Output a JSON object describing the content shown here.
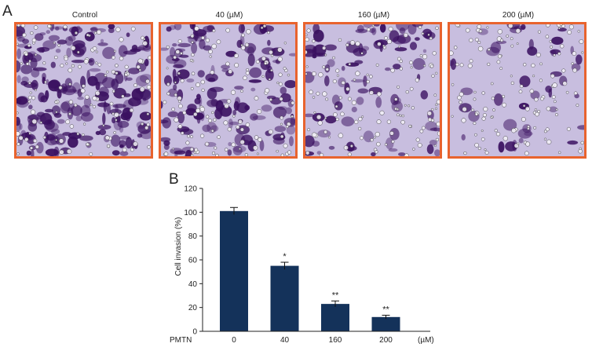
{
  "panel_a": {
    "letter": "A",
    "images": [
      {
        "label": "Control",
        "stain_density": 0.92
      },
      {
        "label": "40 (µM)",
        "stain_density": 0.62
      },
      {
        "label": "160 (µM)",
        "stain_density": 0.34
      },
      {
        "label": "200 (µM)",
        "stain_density": 0.12
      }
    ],
    "frame_color": "#e8632e",
    "stain_color": "#3a1060",
    "background_color": "#c8bedf"
  },
  "panel_b": {
    "letter": "B",
    "chart_data": {
      "type": "bar",
      "categories": [
        "0",
        "40",
        "160",
        "200"
      ],
      "values": [
        101,
        55,
        23,
        12
      ],
      "errors": [
        3,
        3,
        2.5,
        1.5
      ],
      "significance": [
        "",
        "*",
        "**",
        "**"
      ],
      "ylabel": "Cell invasion (%)",
      "xlabel_left": "PMTN",
      "xlabel_right": "(µM)",
      "ylim": [
        0,
        120
      ],
      "yticks": [
        "0",
        "20",
        "40",
        "60",
        "80",
        "100",
        "120"
      ],
      "bar_color": "#14325a",
      "grid": false
    }
  }
}
